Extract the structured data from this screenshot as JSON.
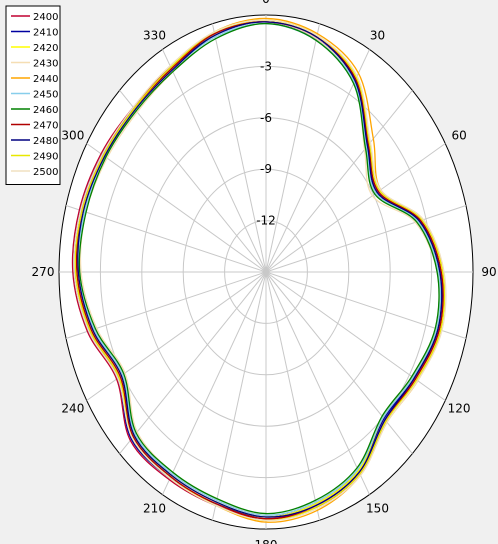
{
  "chart_data": {
    "type": "polar-line",
    "title": "",
    "radial_ticks": [
      "-3",
      "-6",
      "-9",
      "-12"
    ],
    "radial_values": [
      -3,
      -6,
      -9,
      -12
    ],
    "radial_range": [
      -15,
      0
    ],
    "angle_ticks": [
      "0",
      "30",
      "60",
      "90",
      "120",
      "150",
      "180",
      "210",
      "240",
      "270",
      "300",
      "330"
    ],
    "angle_values": [
      0,
      30,
      60,
      90,
      120,
      150,
      180,
      210,
      240,
      270,
      300,
      330
    ],
    "grid": true,
    "legend_position": "top-left",
    "theta_deg": [
      0,
      15,
      30,
      45,
      60,
      75,
      90,
      105,
      120,
      135,
      150,
      165,
      180,
      195,
      210,
      225,
      240,
      255,
      270,
      285,
      300,
      315,
      330,
      345
    ],
    "series": [
      {
        "name": "2400",
        "color": "#c00030",
        "values": [
          -0.4,
          -0.8,
          -2.0,
          -4.5,
          -5.6,
          -3.4,
          -2.3,
          -2.0,
          -2.5,
          -2.8,
          -1.5,
          -0.9,
          -0.6,
          -0.9,
          -1.0,
          -1.1,
          -2.5,
          -1.6,
          -1.0,
          -1.0,
          -1.2,
          -1.4,
          -1.2,
          -0.6
        ]
      },
      {
        "name": "2410",
        "color": "#0000a0",
        "values": [
          -0.4,
          -0.9,
          -2.1,
          -4.6,
          -5.7,
          -3.5,
          -2.4,
          -2.1,
          -2.6,
          -2.9,
          -1.6,
          -1.0,
          -0.7,
          -1.0,
          -1.1,
          -1.2,
          -2.6,
          -1.7,
          -1.1,
          -1.1,
          -1.3,
          -1.5,
          -1.3,
          -0.7
        ]
      },
      {
        "name": "2420",
        "color": "#ffff00",
        "values": [
          -0.3,
          -0.8,
          -2.0,
          -4.7,
          -5.8,
          -3.6,
          -2.5,
          -2.2,
          -2.7,
          -3.0,
          -1.6,
          -1.0,
          -0.7,
          -1.1,
          -1.3,
          -1.5,
          -2.9,
          -2.0,
          -1.4,
          -1.3,
          -1.5,
          -1.6,
          -1.3,
          -0.6
        ]
      },
      {
        "name": "2430",
        "color": "#f5deb3",
        "values": [
          -0.4,
          -0.9,
          -2.2,
          -4.9,
          -6.1,
          -3.8,
          -2.6,
          -2.3,
          -2.8,
          -3.1,
          -1.8,
          -1.1,
          -0.8,
          -1.3,
          -1.5,
          -1.8,
          -3.2,
          -2.3,
          -1.6,
          -1.5,
          -1.7,
          -1.8,
          -1.5,
          -0.7
        ]
      },
      {
        "name": "2440",
        "color": "#ffa500",
        "values": [
          -0.2,
          -0.6,
          -1.6,
          -4.0,
          -5.4,
          -3.2,
          -2.2,
          -1.9,
          -2.3,
          -2.6,
          -1.3,
          -0.6,
          -0.4,
          -0.9,
          -1.2,
          -1.4,
          -2.7,
          -1.8,
          -1.3,
          -1.3,
          -1.5,
          -1.6,
          -1.3,
          -0.5
        ]
      },
      {
        "name": "2450",
        "color": "#87ceeb",
        "values": [
          -0.5,
          -1.0,
          -2.2,
          -4.7,
          -5.8,
          -3.6,
          -2.5,
          -2.2,
          -2.7,
          -3.0,
          -1.7,
          -1.1,
          -0.8,
          -1.2,
          -1.4,
          -1.6,
          -3.0,
          -2.1,
          -1.4,
          -1.4,
          -1.5,
          -1.6,
          -1.4,
          -0.8
        ]
      },
      {
        "name": "2460",
        "color": "#008000",
        "values": [
          -0.5,
          -1.0,
          -2.3,
          -4.8,
          -5.9,
          -3.7,
          -2.6,
          -2.3,
          -2.8,
          -3.1,
          -1.8,
          -1.2,
          -0.9,
          -1.3,
          -1.5,
          -1.7,
          -3.1,
          -2.2,
          -1.5,
          -1.5,
          -1.6,
          -1.7,
          -1.5,
          -0.9
        ]
      },
      {
        "name": "2470",
        "color": "#b00000",
        "values": [
          -0.4,
          -0.8,
          -2.0,
          -4.5,
          -5.6,
          -3.4,
          -2.3,
          -2.0,
          -2.5,
          -2.7,
          -1.4,
          -0.8,
          -0.6,
          -1.0,
          -1.2,
          -1.4,
          -2.8,
          -1.9,
          -1.3,
          -1.2,
          -1.4,
          -1.5,
          -1.3,
          -0.6
        ]
      },
      {
        "name": "2480",
        "color": "#000080",
        "values": [
          -0.4,
          -0.8,
          -2.1,
          -4.6,
          -5.7,
          -3.5,
          -2.4,
          -2.1,
          -2.6,
          -2.8,
          -1.5,
          -0.9,
          -0.7,
          -1.1,
          -1.3,
          -1.5,
          -2.9,
          -2.0,
          -1.4,
          -1.3,
          -1.5,
          -1.6,
          -1.4,
          -0.7
        ]
      },
      {
        "name": "2490",
        "color": "#e8e800",
        "values": [
          -0.3,
          -0.7,
          -1.9,
          -4.4,
          -5.5,
          -3.3,
          -2.2,
          -1.9,
          -2.4,
          -2.7,
          -1.4,
          -0.8,
          -0.5,
          -0.9,
          -1.1,
          -1.3,
          -2.7,
          -1.8,
          -1.2,
          -1.2,
          -1.4,
          -1.5,
          -1.2,
          -0.5
        ]
      },
      {
        "name": "2500",
        "color": "#f0e0c0",
        "values": [
          -0.3,
          -0.7,
          -1.8,
          -4.3,
          -5.4,
          -3.2,
          -2.1,
          -1.8,
          -2.3,
          -2.6,
          -1.3,
          -0.7,
          -0.5,
          -0.9,
          -1.1,
          -1.3,
          -2.6,
          -1.7,
          -1.1,
          -1.1,
          -1.3,
          -1.4,
          -1.1,
          -0.5
        ]
      }
    ]
  }
}
